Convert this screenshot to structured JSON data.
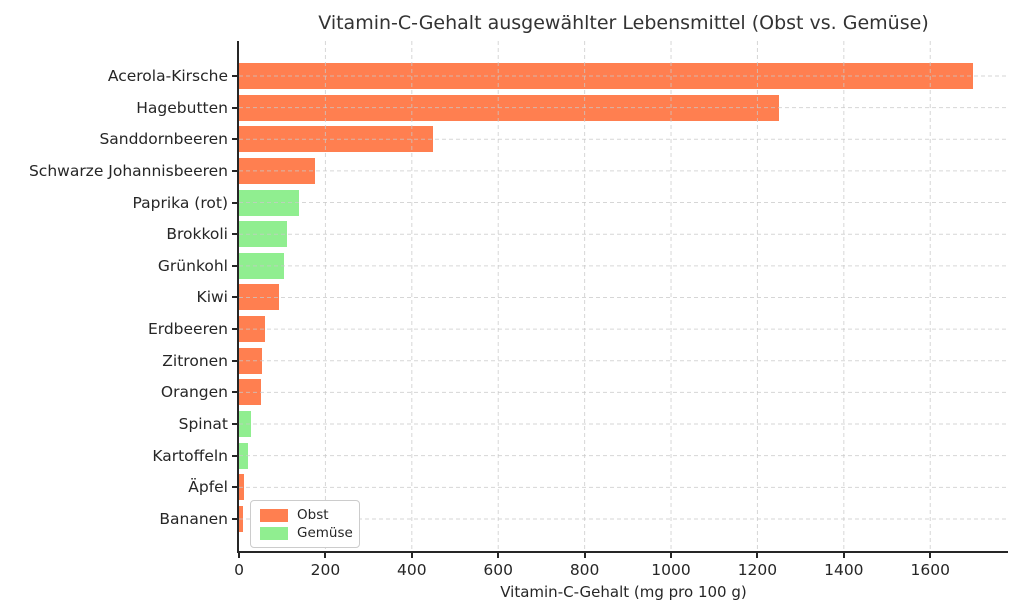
{
  "chart_data": {
    "type": "bar",
    "orientation": "horizontal",
    "title": "Vitamin-C-Gehalt ausgewählter Lebensmittel (Obst vs. Gemüse)",
    "xlabel": "Vitamin-C-Gehalt (mg pro 100 g)",
    "ylabel": "",
    "xlim": [
      0,
      1780
    ],
    "xticks": [
      0,
      200,
      400,
      600,
      800,
      1000,
      1200,
      1400,
      1600
    ],
    "grid": "dashed-both-axes",
    "categories": [
      "Acerola-Kirsche",
      "Hagebutten",
      "Sanddornbeeren",
      "Schwarze Johannisbeeren",
      "Paprika (rot)",
      "Brokkoli",
      "Grünkohl",
      "Kiwi",
      "Erdbeeren",
      "Zitronen",
      "Orangen",
      "Spinat",
      "Kartoffeln",
      "Äpfel",
      "Bananen"
    ],
    "values": [
      1700,
      1250,
      450,
      177,
      140,
      110,
      105,
      93,
      60,
      53,
      50,
      28,
      20,
      12,
      10
    ],
    "groups": [
      "Obst",
      "Obst",
      "Obst",
      "Obst",
      "Gemüse",
      "Gemüse",
      "Gemüse",
      "Obst",
      "Obst",
      "Obst",
      "Obst",
      "Gemüse",
      "Gemüse",
      "Obst",
      "Obst"
    ],
    "colors": {
      "Obst": "#FF7F50",
      "Gemüse": "#90EE90"
    },
    "legend": {
      "position": "lower left",
      "entries": [
        {
          "label": "Obst",
          "color": "#FF7F50"
        },
        {
          "label": "Gemüse",
          "color": "#90EE90"
        }
      ]
    },
    "style": {
      "spine_color": "#262626",
      "grid_color": "#c9c9c9",
      "text_color": "#262626",
      "background": "#ffffff"
    }
  }
}
